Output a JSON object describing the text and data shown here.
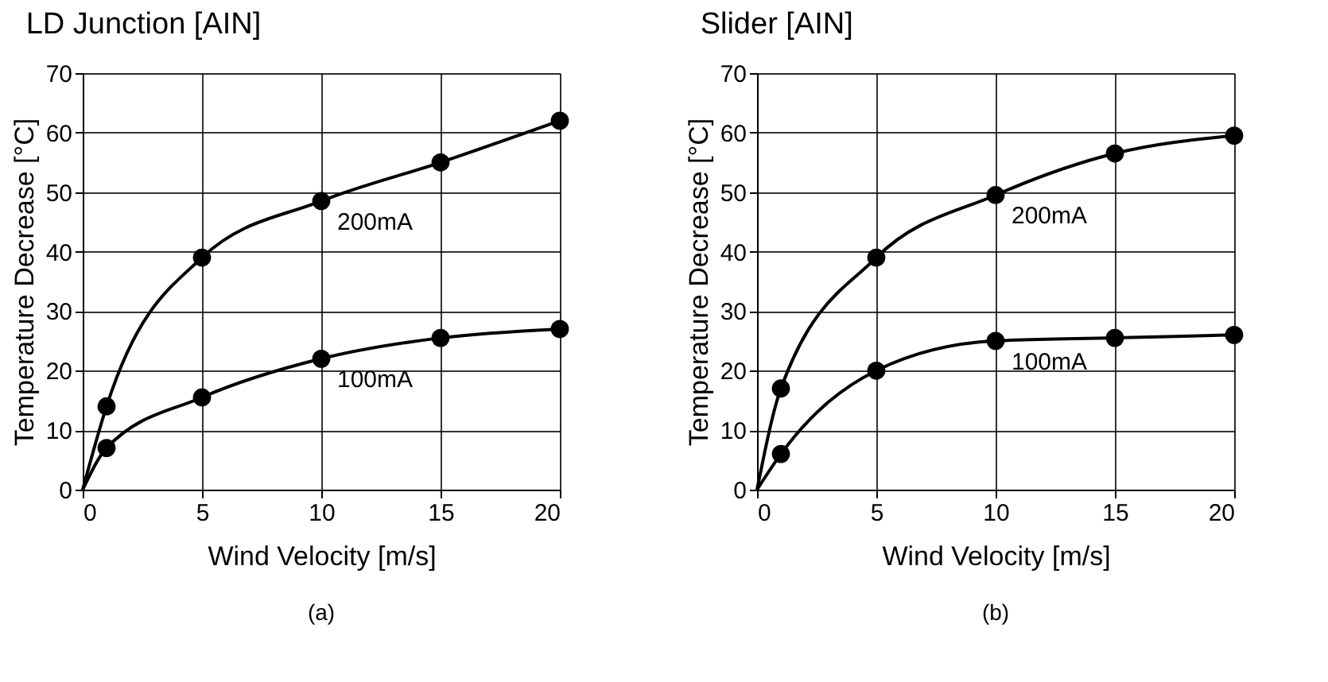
{
  "chart_data": [
    {
      "type": "line",
      "title": "LD Junction  [AIN]",
      "xlabel": "Wind Velocity  [m/s]",
      "ylabel": "Temperature Decrease [°C]",
      "annotations": [
        "(a)"
      ],
      "x": [
        0,
        1,
        5,
        10,
        15,
        20
      ],
      "xlim": [
        0,
        20
      ],
      "xticks": [
        0,
        5,
        10,
        15,
        20
      ],
      "ylim": [
        0,
        70
      ],
      "yticks": [
        0,
        10,
        20,
        30,
        40,
        50,
        60,
        70
      ],
      "grid": true,
      "marker": "circle",
      "line_style": "solid",
      "series": [
        {
          "name": "200mA",
          "color": "#000000",
          "values": [
            0,
            14,
            39,
            48.5,
            55,
            62
          ]
        },
        {
          "name": "100mA",
          "color": "#000000",
          "values": [
            0,
            7,
            15.5,
            22,
            25.5,
            27
          ]
        }
      ]
    },
    {
      "type": "line",
      "title": "Slider        [AIN]",
      "xlabel": "Wind Velocity  [m/s]",
      "ylabel": "Temperature Decrease [°C]",
      "annotations": [
        "(b)"
      ],
      "x": [
        0,
        1,
        5,
        10,
        15,
        20
      ],
      "xlim": [
        0,
        20
      ],
      "xticks": [
        0,
        5,
        10,
        15,
        20
      ],
      "ylim": [
        0,
        70
      ],
      "yticks": [
        0,
        10,
        20,
        30,
        40,
        50,
        60,
        70
      ],
      "grid": true,
      "marker": "circle",
      "line_style": "solid",
      "series": [
        {
          "name": "200mA",
          "color": "#000000",
          "values": [
            0,
            17,
            39,
            49.5,
            56.5,
            59.5
          ]
        },
        {
          "name": "100mA",
          "color": "#000000",
          "values": [
            0,
            6,
            20,
            25,
            25.5,
            26
          ]
        }
      ]
    }
  ]
}
